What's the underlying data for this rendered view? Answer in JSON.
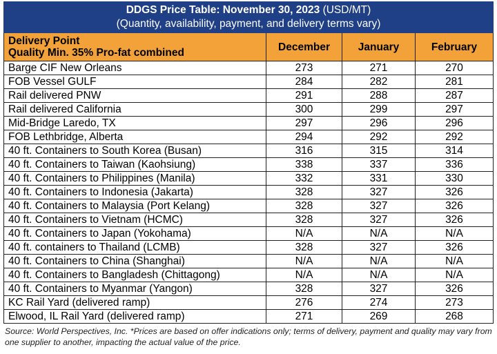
{
  "title": {
    "bold": "DDGS Price Table: November 30, 2023",
    "units": "(USD/MT)",
    "subtitle": "(Quantity, availability, payment, and delivery terms vary)"
  },
  "header": {
    "col1_line1": "Delivery Point",
    "col1_line2": "Quality Min. 35% Pro-fat combined",
    "months": [
      "December",
      "January",
      "February"
    ]
  },
  "rows": [
    {
      "point": "Barge CIF New Orleans",
      "dec": "273",
      "jan": "271",
      "feb": "270"
    },
    {
      "point": "FOB Vessel GULF",
      "dec": "284",
      "jan": "282",
      "feb": "281"
    },
    {
      "point": "Rail delivered PNW",
      "dec": "291",
      "jan": "288",
      "feb": "287"
    },
    {
      "point": "Rail delivered California",
      "dec": "300",
      "jan": "299",
      "feb": "297"
    },
    {
      "point": "Mid-Bridge Laredo, TX",
      "dec": "297",
      "jan": "296",
      "feb": "296"
    },
    {
      "point": "FOB Lethbridge, Alberta",
      "dec": "294",
      "jan": "292",
      "feb": "292"
    },
    {
      "point": "40 ft. Containers to South Korea (Busan)",
      "dec": "316",
      "jan": "315",
      "feb": "314"
    },
    {
      "point": "40 ft. Containers to Taiwan (Kaohsiung)",
      "dec": "338",
      "jan": "337",
      "feb": "336"
    },
    {
      "point": "40 ft. Containers to Philippines (Manila)",
      "dec": "332",
      "jan": "331",
      "feb": "330"
    },
    {
      "point": "40 ft. Containers to Indonesia (Jakarta)",
      "dec": "328",
      "jan": "327",
      "feb": "326"
    },
    {
      "point": "40 ft. Containers to Malaysia (Port Kelang)",
      "dec": "328",
      "jan": "327",
      "feb": "326"
    },
    {
      "point": "40 ft. Containers to Vietnam (HCMC)",
      "dec": "328",
      "jan": "327",
      "feb": "326"
    },
    {
      "point": "40 ft. Containers to Japan (Yokohama)",
      "dec": "N/A",
      "jan": "N/A",
      "feb": "N/A"
    },
    {
      "point": "40 ft. containers to Thailand (LCMB)",
      "dec": "328",
      "jan": "327",
      "feb": "326"
    },
    {
      "point": "40 ft. Containers to China (Shanghai)",
      "dec": "N/A",
      "jan": "N/A",
      "feb": "N/A"
    },
    {
      "point": "40 ft. Containers to Bangladesh (Chittagong)",
      "dec": "N/A",
      "jan": "N/A",
      "feb": "N/A"
    },
    {
      "point": "40 ft. Containers to Myanmar (Yangon)",
      "dec": "328",
      "jan": "327",
      "feb": "326"
    },
    {
      "point": "KC Rail Yard (delivered ramp)",
      "dec": "276",
      "jan": "274",
      "feb": "273"
    },
    {
      "point": "Elwood, IL Rail Yard (delivered ramp)",
      "dec": "271",
      "jan": "269",
      "feb": "268"
    }
  ],
  "footnote": "Source: World Perspectives, Inc. *Prices are based on offer indications only; terms of delivery, payment and quality may vary from one supplier to another, impacting the actual value of the price.",
  "colors": {
    "title_bg": "#1f3f87",
    "header_bg": "#f2a238"
  }
}
